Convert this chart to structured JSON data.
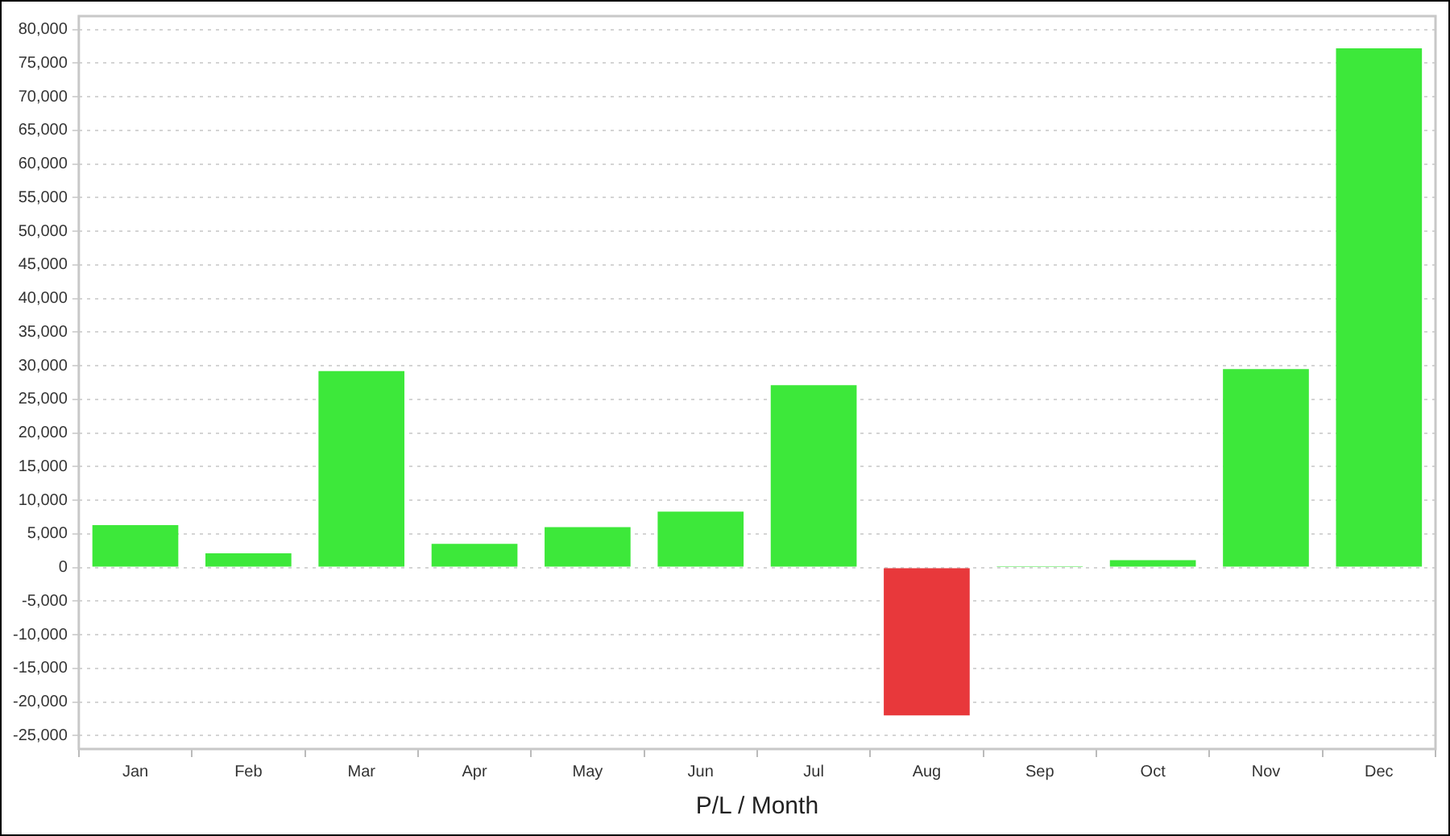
{
  "chart_data": {
    "type": "bar",
    "xlabel": "P/L / Month",
    "categories": [
      "Jan",
      "Feb",
      "Mar",
      "Apr",
      "May",
      "Jun",
      "Jul",
      "Aug",
      "Sep",
      "Oct",
      "Nov",
      "Dec"
    ],
    "values": [
      6300,
      2100,
      29200,
      3500,
      6000,
      8300,
      27100,
      -22000,
      200,
      1100,
      29500,
      77200
    ],
    "colors": [
      "#3de83a",
      "#3de83a",
      "#3de83a",
      "#3de83a",
      "#3de83a",
      "#3de83a",
      "#3de83a",
      "#e8383b",
      "#3de83a",
      "#3de83a",
      "#3de83a",
      "#3de83a"
    ],
    "ylim": [
      -27000,
      82000
    ],
    "yticks": [
      {
        "value": -25000,
        "label": "-25,000"
      },
      {
        "value": -20000,
        "label": "-20,000"
      },
      {
        "value": -15000,
        "label": "-15,000"
      },
      {
        "value": -10000,
        "label": "-10,000"
      },
      {
        "value": -5000,
        "label": "-5,000"
      },
      0,
      {
        "value": 5000,
        "label": "5,000"
      },
      {
        "value": 10000,
        "label": "10,000"
      },
      {
        "value": 15000,
        "label": "15,000"
      },
      {
        "value": 20000,
        "label": "20,000"
      },
      {
        "value": 25000,
        "label": "25,000"
      },
      {
        "value": 30000,
        "label": "30,000"
      },
      {
        "value": 35000,
        "label": "35,000"
      },
      {
        "value": 40000,
        "label": "40,000"
      },
      {
        "value": 45000,
        "label": "45,000"
      },
      {
        "value": 50000,
        "label": "50,000"
      },
      {
        "value": 55000,
        "label": "55,000"
      },
      {
        "value": 60000,
        "label": "60,000"
      },
      {
        "value": 65000,
        "label": "65,000"
      },
      {
        "value": 70000,
        "label": "70,000"
      },
      {
        "value": 75000,
        "label": "75,000"
      },
      {
        "value": 80000,
        "label": "80,000"
      }
    ],
    "grid": "y",
    "legend": false
  }
}
